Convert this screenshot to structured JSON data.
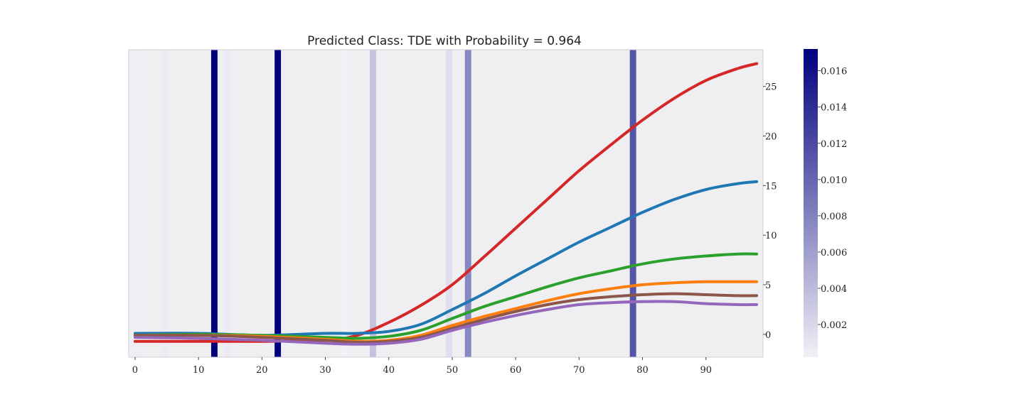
{
  "chart_data": {
    "type": "line",
    "title": "Predicted Class: TDE with Probability = 0.964",
    "xlabel": "",
    "ylabel": "",
    "xlim": [
      -1,
      99
    ],
    "ylim": [
      -2.3,
      28.7
    ],
    "xticks": [
      0,
      10,
      20,
      30,
      40,
      50,
      60,
      70,
      80,
      90
    ],
    "yticks": [
      0,
      5,
      10,
      15,
      20,
      25
    ],
    "y_axis_side": "right",
    "grid": false,
    "background": "#efeff2",
    "series": [
      {
        "color": "#d62728",
        "x": [
          0,
          10,
          20,
          30,
          35,
          40,
          45,
          50,
          55,
          60,
          65,
          70,
          75,
          80,
          85,
          90,
          95,
          98
        ],
        "y": [
          -0.7,
          -0.7,
          -0.7,
          -0.6,
          -0.1,
          1.2,
          2.9,
          5.0,
          7.8,
          10.7,
          13.6,
          16.5,
          19.1,
          21.6,
          23.8,
          25.6,
          26.8,
          27.3
        ]
      },
      {
        "color": "#1f77b4",
        "x": [
          0,
          10,
          20,
          30,
          35,
          40,
          45,
          50,
          55,
          60,
          65,
          70,
          75,
          80,
          85,
          90,
          95,
          98
        ],
        "y": [
          0.1,
          0.1,
          -0.1,
          0.1,
          0.1,
          0.3,
          1.0,
          2.5,
          4.1,
          5.9,
          7.6,
          9.3,
          10.8,
          12.3,
          13.6,
          14.6,
          15.2,
          15.4
        ]
      },
      {
        "color": "#2ca02c",
        "x": [
          0,
          10,
          20,
          30,
          35,
          40,
          45,
          50,
          55,
          60,
          65,
          70,
          75,
          80,
          85,
          90,
          95,
          98
        ],
        "y": [
          -0.1,
          0.0,
          -0.1,
          -0.3,
          -0.4,
          -0.2,
          0.4,
          1.6,
          2.8,
          3.8,
          4.8,
          5.7,
          6.4,
          7.1,
          7.6,
          7.9,
          8.1,
          8.1
        ]
      },
      {
        "color": "#ff7f0e",
        "x": [
          0,
          10,
          20,
          30,
          35,
          40,
          45,
          50,
          55,
          60,
          65,
          70,
          75,
          80,
          85,
          90,
          95,
          98
        ],
        "y": [
          -0.1,
          -0.1,
          -0.2,
          -0.5,
          -0.7,
          -0.6,
          -0.1,
          0.9,
          1.8,
          2.6,
          3.4,
          4.1,
          4.6,
          5.0,
          5.2,
          5.3,
          5.3,
          5.3
        ]
      },
      {
        "color": "#8c564b",
        "x": [
          0,
          10,
          20,
          30,
          35,
          40,
          45,
          50,
          55,
          60,
          65,
          70,
          75,
          80,
          85,
          90,
          95,
          98
        ],
        "y": [
          -0.1,
          -0.1,
          -0.3,
          -0.6,
          -0.8,
          -0.7,
          -0.3,
          0.6,
          1.5,
          2.3,
          3.0,
          3.5,
          3.8,
          4.0,
          4.1,
          4.0,
          3.9,
          3.9
        ]
      },
      {
        "color": "#9467bd",
        "x": [
          0,
          10,
          20,
          30,
          35,
          40,
          45,
          50,
          55,
          60,
          65,
          70,
          75,
          80,
          85,
          90,
          95,
          98
        ],
        "y": [
          -0.3,
          -0.4,
          -0.6,
          -0.9,
          -1.0,
          -0.9,
          -0.5,
          0.4,
          1.2,
          1.9,
          2.5,
          3.0,
          3.2,
          3.3,
          3.3,
          3.1,
          3.0,
          3.0
        ]
      }
    ],
    "attention_bands": [
      {
        "x": 0,
        "weight": 0.0005
      },
      {
        "x": 4.5,
        "weight": 0.0006
      },
      {
        "x": 12.5,
        "weight": 0.0172
      },
      {
        "x": 14.5,
        "weight": 0.0006
      },
      {
        "x": 22.5,
        "weight": 0.0172
      },
      {
        "x": 33,
        "weight": 0.0002
      },
      {
        "x": 37.5,
        "weight": 0.0035
      },
      {
        "x": 49.5,
        "weight": 0.0015
      },
      {
        "x": 52.5,
        "weight": 0.0077
      },
      {
        "x": 78.5,
        "weight": 0.0112
      }
    ],
    "colorbar": {
      "colormap": [
        "#f2f1f6",
        "#00007e"
      ],
      "range": [
        0.0002,
        0.0172
      ],
      "ticks": [
        0.002,
        0.004,
        0.006,
        0.008,
        0.01,
        0.012,
        0.014,
        0.016
      ],
      "tick_labels": [
        "0.002",
        "0.004",
        "0.006",
        "0.008",
        "0.010",
        "0.012",
        "0.014",
        "0.016"
      ]
    }
  }
}
